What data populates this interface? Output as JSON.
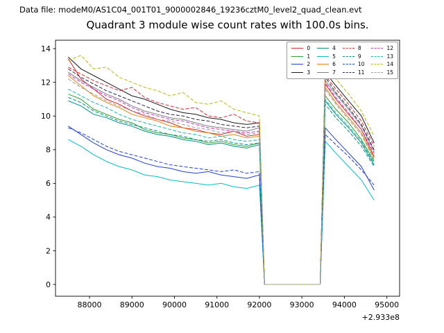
{
  "header": {
    "datafile_label": "Data file: modeM0/AS1C04_001T01_9000002846_19236cztM0_level2_quad_clean.evt"
  },
  "chart_data": {
    "type": "line",
    "title": "Quadrant 3 module wise count rates with 100.0s bins.",
    "xlabel": "",
    "ylabel": "",
    "x_offset_label": "+2.933e8",
    "grid": false,
    "legend_position": "upper right",
    "xlim": [
      87200,
      95300
    ],
    "ylim": [
      -0.7,
      14.5
    ],
    "x_ticks": [
      88000,
      89000,
      90000,
      91000,
      92000,
      93000,
      94000,
      95000
    ],
    "y_ticks": [
      0,
      2,
      4,
      6,
      8,
      10,
      12,
      14
    ],
    "x": [
      87500,
      87800,
      88100,
      88400,
      88700,
      89000,
      89300,
      89600,
      89900,
      90200,
      90500,
      90800,
      91100,
      91400,
      91700,
      92000,
      92120,
      92400,
      92700,
      93000,
      93300,
      93430,
      93550,
      93800,
      94100,
      94400,
      94700
    ],
    "series": [
      {
        "label": "0",
        "color": "#d62728",
        "dash": "solid",
        "values": [
          13.4,
          12.2,
          11.6,
          11.0,
          10.7,
          10.3,
          10.0,
          9.8,
          9.6,
          9.3,
          9.2,
          9.0,
          8.9,
          9.1,
          8.8,
          8.9,
          0,
          0,
          0,
          0,
          0,
          0,
          11.9,
          11.0,
          10.1,
          9.2,
          7.6
        ]
      },
      {
        "label": "1",
        "color": "#2ca02c",
        "dash": "solid",
        "values": [
          11.3,
          11.0,
          10.4,
          10.1,
          9.8,
          9.6,
          9.2,
          9.0,
          8.9,
          8.7,
          8.6,
          8.4,
          8.5,
          8.3,
          8.2,
          8.4,
          0,
          0,
          0,
          0,
          0,
          0,
          11.2,
          10.4,
          9.6,
          8.6,
          7.3
        ]
      },
      {
        "label": "2",
        "color": "#2040d0",
        "dash": "solid",
        "values": [
          9.4,
          8.9,
          8.4,
          8.0,
          7.7,
          7.5,
          7.2,
          7.0,
          6.9,
          6.7,
          6.6,
          6.7,
          6.5,
          6.4,
          6.3,
          6.5,
          0,
          0,
          0,
          0,
          0,
          0,
          9.3,
          8.6,
          7.8,
          7.0,
          5.6
        ]
      },
      {
        "label": "3",
        "color": "#1a1a1a",
        "dash": "solid",
        "values": [
          13.5,
          12.8,
          12.4,
          12.0,
          11.6,
          11.2,
          11.0,
          10.7,
          10.4,
          10.2,
          10.1,
          9.9,
          9.8,
          9.6,
          9.5,
          9.6,
          0,
          0,
          0,
          0,
          0,
          0,
          12.6,
          11.8,
          10.9,
          10.0,
          8.4
        ]
      },
      {
        "label": "4",
        "color": "#008b8b",
        "dash": "solid",
        "values": [
          10.9,
          10.6,
          10.1,
          9.9,
          9.6,
          9.4,
          9.1,
          8.9,
          8.8,
          8.6,
          8.5,
          8.3,
          8.4,
          8.2,
          8.1,
          8.3,
          0,
          0,
          0,
          0,
          0,
          0,
          10.9,
          10.1,
          9.3,
          8.4,
          7.1
        ]
      },
      {
        "label": "5",
        "color": "#00bcc4",
        "dash": "solid",
        "values": [
          8.6,
          8.2,
          7.7,
          7.3,
          7.0,
          6.8,
          6.5,
          6.4,
          6.2,
          6.1,
          6.0,
          5.9,
          6.0,
          5.8,
          5.7,
          5.9,
          0,
          0,
          0,
          0,
          0,
          0,
          8.5,
          7.8,
          7.0,
          6.2,
          5.0
        ]
      },
      {
        "label": "6",
        "color": "#e0820c",
        "dash": "solid",
        "values": [
          12.4,
          11.8,
          11.2,
          10.8,
          10.5,
          10.1,
          9.9,
          9.7,
          9.4,
          9.3,
          9.1,
          9.0,
          8.8,
          8.9,
          8.7,
          8.8,
          0,
          0,
          0,
          0,
          0,
          0,
          11.7,
          10.8,
          9.9,
          9.0,
          7.5
        ]
      },
      {
        "label": "7",
        "color": "#7f7f7f",
        "dash": "solid",
        "values": [
          12.6,
          12.1,
          11.7,
          11.3,
          11.0,
          10.6,
          10.3,
          10.1,
          9.9,
          9.8,
          9.6,
          9.4,
          9.3,
          9.2,
          9.1,
          9.3,
          0,
          0,
          0,
          0,
          0,
          0,
          12.1,
          11.3,
          10.4,
          9.4,
          7.9
        ]
      },
      {
        "label": "8",
        "color": "#d62728",
        "dash": "dashed",
        "values": [
          12.9,
          12.5,
          12.1,
          11.8,
          11.5,
          11.7,
          11.1,
          10.8,
          10.6,
          10.4,
          10.5,
          10.0,
          9.9,
          10.1,
          9.7,
          9.6,
          0,
          0,
          0,
          0,
          0,
          0,
          12.4,
          11.6,
          10.7,
          9.7,
          8.2
        ]
      },
      {
        "label": "9",
        "color": "#008b8b",
        "dash": "dashed",
        "values": [
          11.1,
          10.8,
          10.3,
          10.0,
          9.7,
          9.5,
          9.3,
          9.1,
          8.9,
          8.8,
          8.6,
          8.5,
          8.6,
          8.4,
          8.3,
          8.4,
          0,
          0,
          0,
          0,
          0,
          0,
          10.7,
          9.9,
          9.1,
          8.2,
          7.0
        ]
      },
      {
        "label": "10",
        "color": "#2040d0",
        "dash": "dashed",
        "values": [
          9.3,
          9.0,
          8.6,
          8.2,
          7.9,
          7.7,
          7.5,
          7.3,
          7.1,
          7.0,
          6.9,
          6.8,
          6.7,
          6.8,
          6.6,
          6.7,
          0,
          0,
          0,
          0,
          0,
          0,
          8.9,
          8.3,
          7.6,
          6.8,
          5.9
        ]
      },
      {
        "label": "11",
        "color": "#26264a",
        "dash": "dashed",
        "values": [
          12.8,
          12.3,
          11.9,
          11.5,
          11.2,
          10.9,
          10.6,
          10.3,
          10.1,
          10.0,
          9.8,
          9.7,
          9.5,
          9.4,
          9.3,
          9.4,
          0,
          0,
          0,
          0,
          0,
          0,
          12.3,
          11.4,
          10.5,
          9.5,
          8.0
        ]
      },
      {
        "label": "12",
        "color": "#cc2fcc",
        "dash": "dashed",
        "values": [
          12.5,
          12.0,
          11.6,
          11.2,
          10.9,
          10.5,
          10.2,
          10.0,
          9.8,
          9.7,
          9.5,
          9.3,
          9.2,
          9.1,
          9.0,
          9.1,
          0,
          0,
          0,
          0,
          0,
          0,
          12.0,
          11.1,
          10.2,
          9.2,
          7.8
        ]
      },
      {
        "label": "13",
        "color": "#20b2aa",
        "dash": "dashed",
        "values": [
          11.6,
          11.2,
          10.8,
          10.5,
          10.1,
          9.8,
          9.6,
          9.4,
          9.2,
          9.0,
          8.9,
          8.7,
          8.8,
          8.6,
          8.5,
          8.6,
          0,
          0,
          0,
          0,
          0,
          0,
          11.0,
          10.2,
          9.4,
          8.5,
          7.2
        ]
      },
      {
        "label": "14",
        "color": "#b8b812",
        "dash": "dashed",
        "values": [
          13.3,
          13.6,
          12.8,
          12.9,
          12.3,
          12.0,
          11.7,
          11.5,
          11.2,
          11.4,
          10.8,
          10.7,
          10.9,
          10.4,
          10.2,
          10.0,
          0,
          0,
          0,
          0,
          0,
          0,
          12.9,
          12.2,
          11.3,
          10.3,
          8.8
        ]
      },
      {
        "label": "15",
        "color": "#9a9a9a",
        "dash": "dashed",
        "values": [
          12.2,
          11.7,
          11.3,
          10.9,
          10.6,
          10.3,
          10.1,
          9.8,
          9.7,
          9.5,
          9.3,
          9.2,
          9.0,
          9.1,
          8.9,
          9.0,
          0,
          0,
          0,
          0,
          0,
          0,
          11.6,
          10.7,
          9.8,
          8.9,
          7.4
        ]
      }
    ]
  }
}
